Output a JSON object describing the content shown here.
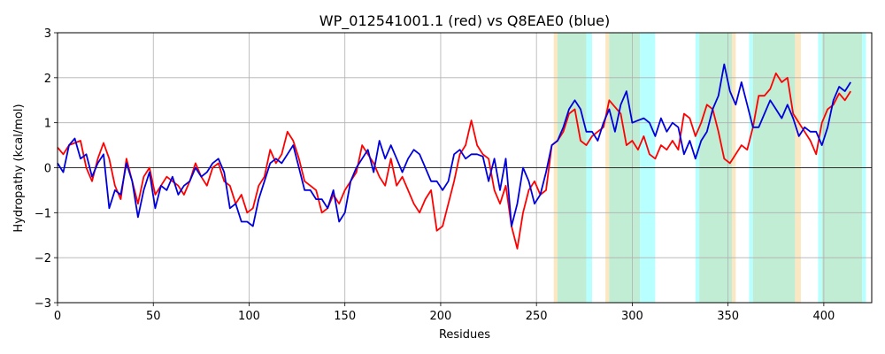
{
  "chart_data": {
    "type": "line",
    "title": "WP_012541001.1 (red) vs Q8EAE0 (blue)",
    "xlabel": "Residues",
    "ylabel": "Hydropathy (kcal/mol)",
    "xlim": [
      0,
      425
    ],
    "ylim": [
      -3,
      3
    ],
    "xticks": [
      0,
      50,
      100,
      150,
      200,
      250,
      300,
      350,
      400
    ],
    "yticks": [
      -3,
      -2,
      -1,
      0,
      1,
      2,
      3
    ],
    "grid": true,
    "zero_line": true,
    "colors": {
      "red": "#ff0000",
      "blue": "#0000dd",
      "band_cyan": "#b8ffff",
      "band_wheat": "#fbe8c2",
      "band_green": "#c0edd4"
    },
    "bands": [
      {
        "color": "band_wheat",
        "x": [
          259,
          261
        ]
      },
      {
        "color": "band_green",
        "x": [
          261,
          276
        ]
      },
      {
        "color": "band_cyan",
        "x": [
          276,
          279
        ]
      },
      {
        "color": "band_wheat",
        "x": [
          286,
          288
        ]
      },
      {
        "color": "band_green",
        "x": [
          288,
          304
        ]
      },
      {
        "color": "band_cyan",
        "x": [
          304,
          312
        ]
      },
      {
        "color": "band_cyan",
        "x": [
          333,
          335
        ]
      },
      {
        "color": "band_green",
        "x": [
          335,
          352
        ]
      },
      {
        "color": "band_wheat",
        "x": [
          352,
          354
        ]
      },
      {
        "color": "band_cyan",
        "x": [
          361,
          363
        ]
      },
      {
        "color": "band_green",
        "x": [
          363,
          385
        ]
      },
      {
        "color": "band_wheat",
        "x": [
          385,
          388
        ]
      },
      {
        "color": "band_cyan",
        "x": [
          397,
          399
        ]
      },
      {
        "color": "band_green",
        "x": [
          399,
          420
        ]
      },
      {
        "color": "band_cyan",
        "x": [
          420,
          422
        ]
      }
    ],
    "series": [
      {
        "color": "red",
        "x": [
          0,
          3,
          6,
          9,
          12,
          15,
          18,
          21,
          24,
          27,
          30,
          33,
          36,
          39,
          42,
          45,
          48,
          51,
          54,
          57,
          60,
          63,
          66,
          69,
          72,
          75,
          78,
          81,
          84,
          87,
          90,
          93,
          96,
          99,
          102,
          105,
          108,
          111,
          114,
          117,
          120,
          123,
          126,
          129,
          132,
          135,
          138,
          141,
          144,
          147,
          150,
          153,
          156,
          159,
          162,
          165,
          168,
          171,
          174,
          177,
          180,
          183,
          186,
          189,
          192,
          195,
          198,
          201,
          204,
          207,
          210,
          213,
          216,
          219,
          222,
          225,
          228,
          231,
          234,
          237,
          240,
          243,
          246,
          249,
          252,
          255,
          258,
          261,
          264,
          267,
          270,
          273,
          276,
          279,
          282,
          285,
          288,
          291,
          294,
          297,
          300,
          303,
          306,
          309,
          312,
          315,
          318,
          321,
          324,
          327,
          330,
          333,
          336,
          339,
          342,
          345,
          348,
          351,
          354,
          357,
          360,
          363,
          366,
          369,
          372,
          375,
          378,
          381,
          384,
          387,
          390,
          393,
          396,
          399,
          402,
          405,
          408,
          411,
          414
        ],
        "y": [
          0.45,
          0.3,
          0.5,
          0.55,
          0.6,
          0.0,
          -0.3,
          0.2,
          0.55,
          0.2,
          -0.4,
          -0.7,
          0.2,
          -0.3,
          -0.8,
          -0.2,
          0.0,
          -0.6,
          -0.4,
          -0.2,
          -0.3,
          -0.4,
          -0.6,
          -0.3,
          0.1,
          -0.2,
          -0.4,
          0.0,
          0.1,
          -0.3,
          -0.4,
          -0.8,
          -0.6,
          -1.0,
          -0.9,
          -0.4,
          -0.2,
          0.4,
          0.1,
          0.3,
          0.8,
          0.6,
          0.2,
          -0.3,
          -0.4,
          -0.5,
          -1.0,
          -0.9,
          -0.6,
          -0.8,
          -0.5,
          -0.3,
          -0.1,
          0.5,
          0.3,
          0.1,
          -0.2,
          -0.4,
          0.2,
          -0.4,
          -0.2,
          -0.5,
          -0.8,
          -1.0,
          -0.7,
          -0.5,
          -1.4,
          -1.3,
          -0.8,
          -0.3,
          0.3,
          0.5,
          1.05,
          0.5,
          0.3,
          0.2,
          -0.5,
          -0.8,
          -0.4,
          -1.3,
          -1.8,
          -1.0,
          -0.5,
          -0.3,
          -0.6,
          -0.5,
          0.5,
          0.6,
          0.8,
          1.2,
          1.3,
          0.6,
          0.5,
          0.7,
          0.8,
          0.9,
          1.5,
          1.35,
          1.2,
          0.5,
          0.6,
          0.4,
          0.7,
          0.3,
          0.2,
          0.5,
          0.4,
          0.6,
          0.4,
          1.2,
          1.1,
          0.7,
          1.0,
          1.4,
          1.3,
          0.8,
          0.2,
          0.1,
          0.3,
          0.5,
          0.4,
          0.9,
          1.6,
          1.6,
          1.75,
          2.1,
          1.9,
          2.0,
          1.2,
          1.0,
          0.8,
          0.6,
          0.3,
          1.0,
          1.3,
          1.4,
          1.65,
          1.5,
          1.7
        ]
      },
      {
        "color": "blue",
        "x": [
          0,
          3,
          6,
          9,
          12,
          15,
          18,
          21,
          24,
          27,
          30,
          33,
          36,
          39,
          42,
          45,
          48,
          51,
          54,
          57,
          60,
          63,
          66,
          69,
          72,
          75,
          78,
          81,
          84,
          87,
          90,
          93,
          96,
          99,
          102,
          105,
          108,
          111,
          114,
          117,
          120,
          123,
          126,
          129,
          132,
          135,
          138,
          141,
          144,
          147,
          150,
          153,
          156,
          159,
          162,
          165,
          168,
          171,
          174,
          177,
          180,
          183,
          186,
          189,
          192,
          195,
          198,
          201,
          204,
          207,
          210,
          213,
          216,
          219,
          222,
          225,
          228,
          231,
          234,
          237,
          240,
          243,
          246,
          249,
          252,
          255,
          258,
          261,
          264,
          267,
          270,
          273,
          276,
          279,
          282,
          285,
          288,
          291,
          294,
          297,
          300,
          303,
          306,
          309,
          312,
          315,
          318,
          321,
          324,
          327,
          330,
          333,
          336,
          339,
          342,
          345,
          348,
          351,
          354,
          357,
          360,
          363,
          366,
          369,
          372,
          375,
          378,
          381,
          384,
          387,
          390,
          393,
          396,
          399,
          402,
          405,
          408,
          411,
          414
        ],
        "y": [
          0.1,
          -0.1,
          0.5,
          0.65,
          0.2,
          0.3,
          -0.2,
          0.1,
          0.3,
          -0.9,
          -0.5,
          -0.6,
          0.1,
          -0.3,
          -1.1,
          -0.5,
          -0.1,
          -0.9,
          -0.4,
          -0.5,
          -0.2,
          -0.6,
          -0.4,
          -0.3,
          0.0,
          -0.2,
          -0.1,
          0.1,
          0.2,
          -0.1,
          -0.9,
          -0.8,
          -1.2,
          -1.2,
          -1.3,
          -0.7,
          -0.3,
          0.1,
          0.2,
          0.1,
          0.3,
          0.5,
          0.0,
          -0.5,
          -0.5,
          -0.7,
          -0.7,
          -0.9,
          -0.5,
          -1.2,
          -1.0,
          -0.3,
          0.0,
          0.2,
          0.4,
          -0.1,
          0.6,
          0.2,
          0.5,
          0.2,
          -0.1,
          0.2,
          0.4,
          0.3,
          0.0,
          -0.3,
          -0.3,
          -0.5,
          -0.3,
          0.3,
          0.4,
          0.2,
          0.3,
          0.3,
          0.25,
          -0.3,
          0.2,
          -0.5,
          0.2,
          -1.3,
          -0.8,
          0.0,
          -0.3,
          -0.8,
          -0.6,
          -0.1,
          0.5,
          0.6,
          0.9,
          1.3,
          1.5,
          1.3,
          0.8,
          0.8,
          0.6,
          1.0,
          1.3,
          0.8,
          1.4,
          1.7,
          1.0,
          1.05,
          1.1,
          1.0,
          0.7,
          1.1,
          0.8,
          1.0,
          0.9,
          0.3,
          0.6,
          0.2,
          0.6,
          0.8,
          1.3,
          1.6,
          2.3,
          1.7,
          1.4,
          1.9,
          1.4,
          0.9,
          0.9,
          1.2,
          1.5,
          1.3,
          1.1,
          1.4,
          1.1,
          0.7,
          0.9,
          0.8,
          0.8,
          0.5,
          0.9,
          1.5,
          1.8,
          1.7,
          1.9
        ]
      }
    ]
  }
}
